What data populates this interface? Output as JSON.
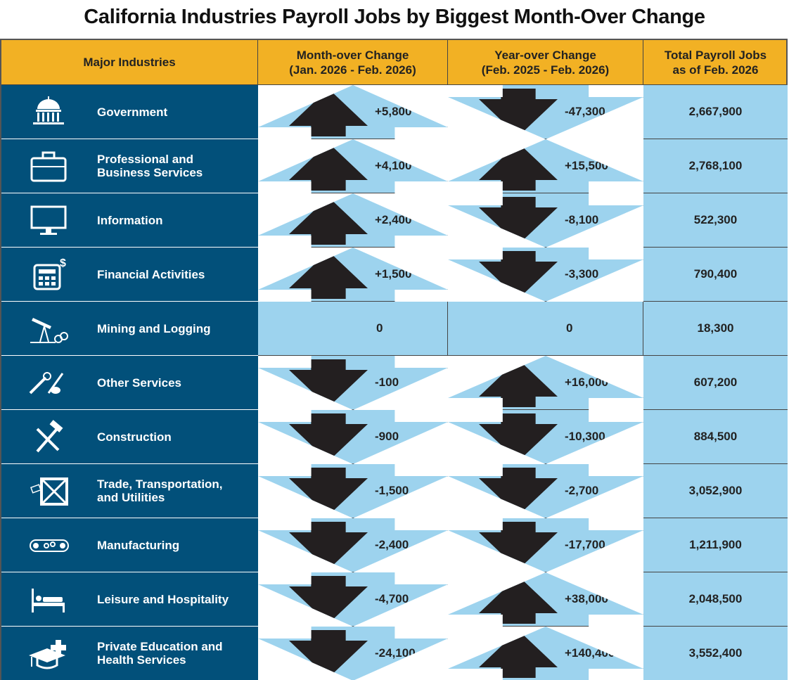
{
  "title": "California Industries Payroll Jobs by Biggest Month-Over Change",
  "headers": {
    "industry": "Major Industries",
    "month_line1": "Month-over Change",
    "month_line2": "(Jan. 2026 - Feb. 2026)",
    "year_line1": "Year-over Change",
    "year_line2": "(Feb. 2025 - Feb. 2026)",
    "total_line1": "Total Payroll Jobs",
    "total_line2": "as of Feb. 2026"
  },
  "colors": {
    "header": "#F2B124",
    "industry_bg": "#02507A",
    "cell_bg": "#9DD3EE",
    "arrow": "#231F20"
  },
  "rows": [
    {
      "icon": "capitol-icon",
      "name": "Government",
      "month": "+5,800",
      "month_dir": "up",
      "year": "-47,300",
      "year_dir": "down",
      "total": "2,667,900"
    },
    {
      "icon": "briefcase-icon",
      "name": "Professional and Business Services",
      "month": "+4,100",
      "month_dir": "up",
      "year": "+15,500",
      "year_dir": "up",
      "total": "2,768,100"
    },
    {
      "icon": "monitor-icon",
      "name": "Information",
      "month": "+2,400",
      "month_dir": "up",
      "year": "-8,100",
      "year_dir": "down",
      "total": "522,300"
    },
    {
      "icon": "calculator-icon",
      "name": "Financial Activities",
      "month": "+1,500",
      "month_dir": "up",
      "year": "-3,300",
      "year_dir": "down",
      "total": "790,400"
    },
    {
      "icon": "oil-pump-icon",
      "name": "Mining and Logging",
      "month": "0",
      "month_dir": "none",
      "year": "0",
      "year_dir": "none",
      "total": "18,300"
    },
    {
      "icon": "tools-icon",
      "name": "Other Services",
      "month": "-100",
      "month_dir": "down",
      "year": "+16,000",
      "year_dir": "up",
      "total": "607,200"
    },
    {
      "icon": "hammer-icon",
      "name": "Construction",
      "month": "-900",
      "month_dir": "down",
      "year": "-10,300",
      "year_dir": "down",
      "total": "884,500"
    },
    {
      "icon": "crate-icon",
      "name": "Trade, Transportation, and Utilities",
      "month": "-1,500",
      "month_dir": "down",
      "year": "-2,700",
      "year_dir": "down",
      "total": "3,052,900"
    },
    {
      "icon": "conveyor-icon",
      "name": "Manufacturing",
      "month": "-2,400",
      "month_dir": "down",
      "year": "-17,700",
      "year_dir": "down",
      "total": "1,211,900"
    },
    {
      "icon": "bed-icon",
      "name": "Leisure and Hospitality",
      "month": "-4,700",
      "month_dir": "down",
      "year": "+38,000",
      "year_dir": "up",
      "total": "2,048,500"
    },
    {
      "icon": "graduation-cap-icon",
      "name": "Private Education and Health Services",
      "month": "-24,100",
      "month_dir": "down",
      "year": "+140,400",
      "year_dir": "up",
      "total": "3,552,400"
    }
  ],
  "chart_data": {
    "type": "table",
    "title": "California Industries Payroll Jobs by Biggest Month-Over Change",
    "columns": [
      "Major Industries",
      "Month-over Change (Jan. 2026 - Feb. 2026)",
      "Year-over Change (Feb. 2025 - Feb. 2026)",
      "Total Payroll Jobs as of Feb. 2026"
    ],
    "categories": [
      "Government",
      "Professional and Business Services",
      "Information",
      "Financial Activities",
      "Mining and Logging",
      "Other Services",
      "Construction",
      "Trade, Transportation, and Utilities",
      "Manufacturing",
      "Leisure and Hospitality",
      "Private Education and Health Services"
    ],
    "series": [
      {
        "name": "Month-over Change",
        "values": [
          5800,
          4100,
          2400,
          1500,
          0,
          -100,
          -900,
          -1500,
          -2400,
          -4700,
          -24100
        ]
      },
      {
        "name": "Year-over Change",
        "values": [
          -47300,
          15500,
          -8100,
          -3300,
          0,
          16000,
          -10300,
          -2700,
          -17700,
          38000,
          140400
        ]
      },
      {
        "name": "Total Payroll Jobs",
        "values": [
          2667900,
          2768100,
          522300,
          790400,
          18300,
          607200,
          884500,
          3052900,
          1211900,
          2048500,
          3552400
        ]
      }
    ]
  }
}
